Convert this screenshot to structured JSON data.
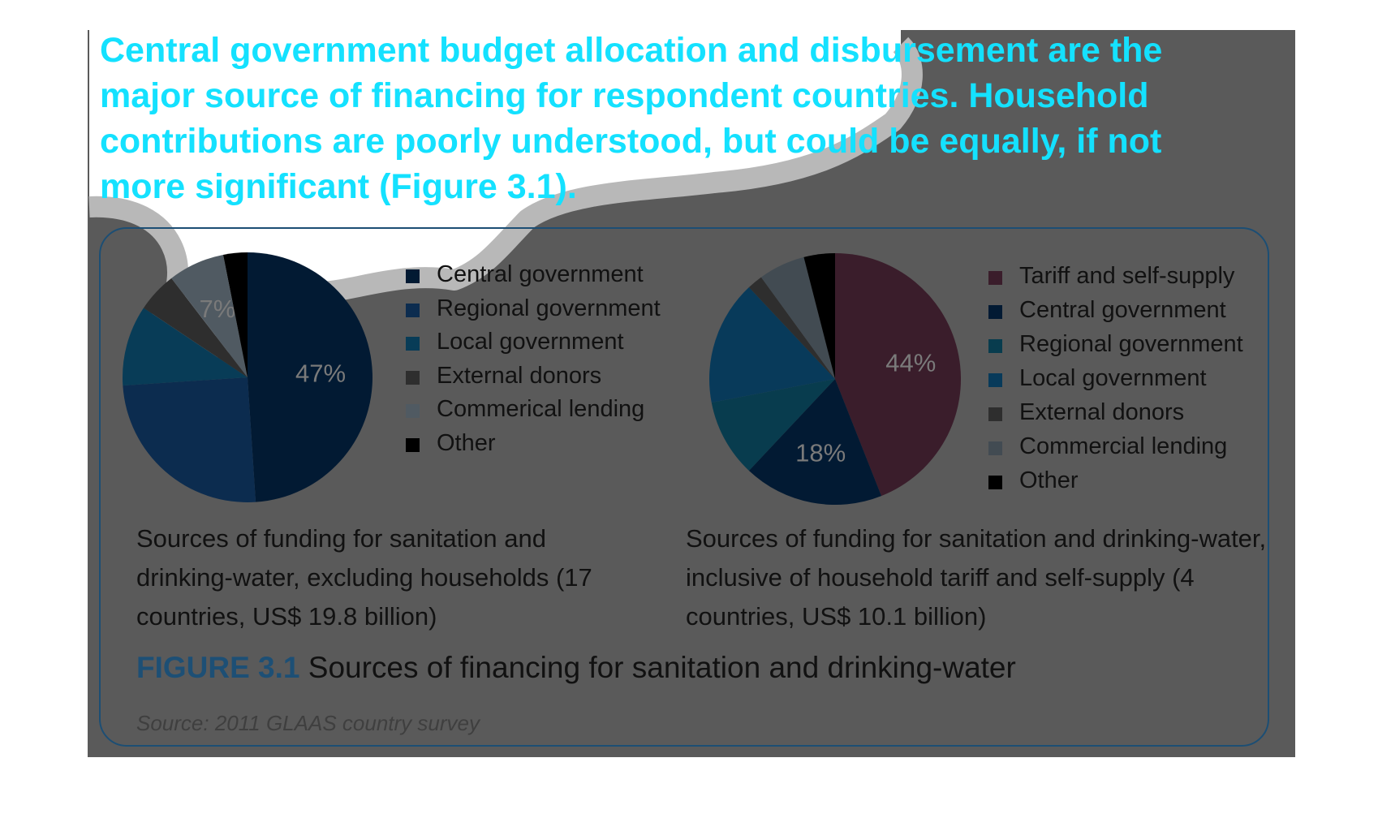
{
  "headline": "Central government budget allocation and disbursement are the major source of financing for respondent countries. Household contributions are poorly understood, but could be equally, if not more significant (Figure 3.1).",
  "chart_data": [
    {
      "type": "pie",
      "caption": "Sources of funding for sanitation and drinking-water, excluding households (17 countries, US$ 19.8 billion)",
      "categories": [
        "Central government",
        "Regional government",
        "Local government",
        "External donors",
        "Commerical lending",
        "Other"
      ],
      "values": [
        47,
        24,
        10,
        5,
        7,
        3
      ],
      "colors": [
        "#021a33",
        "#0c2c4f",
        "#083c57",
        "#2e2e2e",
        "#505a62",
        "#000000"
      ],
      "data_labels": [
        "47%",
        "",
        "",
        "",
        "7%",
        ""
      ]
    },
    {
      "type": "pie",
      "caption": "Sources of funding for sanitation and drinking-water, inclusive of household tariff and self-supply (4 countries, US$ 10.1 billion)",
      "categories": [
        "Tariff and self-supply",
        "Central government",
        "Regional government",
        "Local government",
        "External donors",
        "Commercial lending",
        "Other"
      ],
      "values": [
        44,
        18,
        10,
        16,
        2,
        6,
        4
      ],
      "colors": [
        "#3a1d2b",
        "#021a33",
        "#083c4e",
        "#083a5a",
        "#2e2e2e",
        "#424b52",
        "#000000"
      ],
      "data_labels": [
        "44%",
        "18%",
        "",
        "",
        "",
        "",
        ""
      ]
    }
  ],
  "figure": {
    "number": "FIGURE 3.1",
    "title": "Sources of financing for sanitation and drinking-water",
    "source": "Source: 2011 GLAAS country survey"
  }
}
